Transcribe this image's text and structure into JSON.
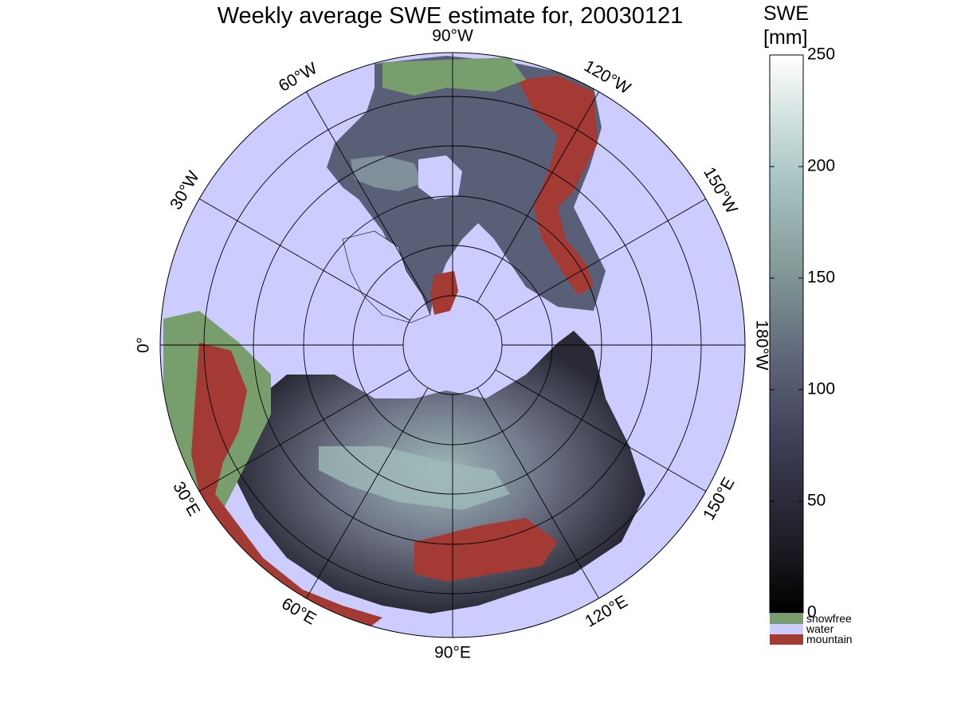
{
  "title": "Weekly average SWE estimate for, 20030121",
  "colorbar": {
    "label_line1": "SWE",
    "label_line2": "[mm]",
    "ticks": [
      "0",
      "50",
      "100",
      "150",
      "200",
      "250"
    ],
    "range": [
      0,
      250
    ]
  },
  "legend": [
    {
      "label": "snowfree",
      "color": "#789e6e"
    },
    {
      "label": "water",
      "color": "#ccccff"
    },
    {
      "label": "mountain",
      "color": "#a33a33"
    }
  ],
  "map": {
    "projection": "north polar stereographic",
    "ocean_color": "#ccccff",
    "land_snowfree_color": "#789e6e",
    "mountain_color": "#a33a33",
    "longitude_labels": {
      "lon_90W": "90°W",
      "lon_120W": "120°W",
      "lon_150W": "150°W",
      "lon_180W": "180°W",
      "lon_150E": "150°E",
      "lon_120E": "120°E",
      "lon_90E": "90°E",
      "lon_60E": "60°E",
      "lon_30E": "30°E",
      "lon_0": "0°",
      "lon_30W": "30°W",
      "lon_60W": "60°W"
    }
  }
}
